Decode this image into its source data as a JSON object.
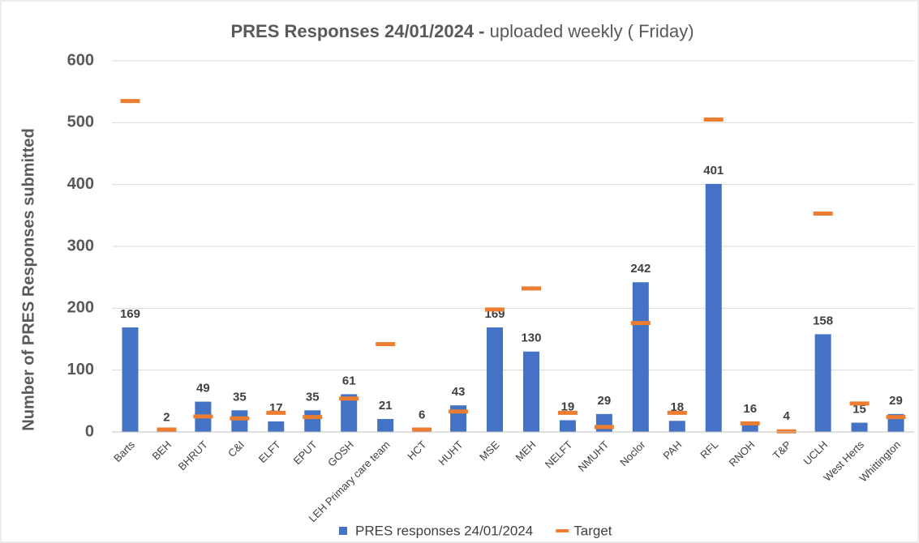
{
  "chart_data": {
    "type": "bar",
    "title": "PRES Responses 24/01/2024 -",
    "subtitle": "uploaded weekly ( Friday)",
    "y_label": "Number of PRES Responses submitted",
    "categories": [
      "Barts",
      "BEH",
      "BHRUT",
      "C&I",
      "ELFT",
      "EPUT",
      "GOSH",
      "LEH Primary care team",
      "HCT",
      "HUHT",
      "MSE",
      "MEH",
      "NELFT",
      "NMUHT",
      "Noclor",
      "PAH",
      "RFL",
      "RNOH",
      "T&P",
      "UCLH",
      "West Herts",
      "Whittington"
    ],
    "series": [
      {
        "name": "PRES responses 24/01/2024",
        "color": "#4472c4",
        "marker": "bar",
        "values": [
          169,
          2,
          49,
          35,
          17,
          35,
          61,
          21,
          6,
          43,
          169,
          130,
          19,
          29,
          242,
          18,
          401,
          16,
          4,
          158,
          15,
          29
        ]
      },
      {
        "name": "Target",
        "color": "#ed7d31",
        "marker": "dash",
        "values": [
          535,
          4,
          25,
          22,
          31,
          24,
          54,
          142,
          4,
          33,
          198,
          232,
          31,
          8,
          176,
          31,
          505,
          14,
          1,
          353,
          46,
          24
        ]
      }
    ],
    "ylim": [
      0,
      600
    ],
    "yticks": [
      0,
      100,
      200,
      300,
      400,
      500,
      600
    ],
    "grid": true,
    "legend": "bottom"
  }
}
